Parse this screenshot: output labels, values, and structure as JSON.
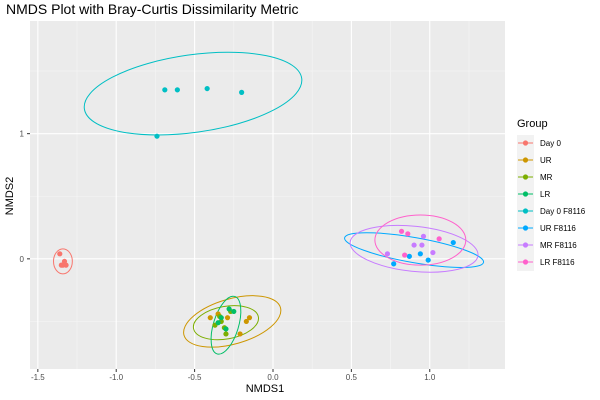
{
  "chart_data": {
    "type": "scatter",
    "title": "NMDS Plot with Bray-Curtis Dissimilarity Metric",
    "xlabel": "NMDS1",
    "ylabel": "NMDS2",
    "xlim": [
      -1.55,
      1.48
    ],
    "ylim": [
      -0.88,
      1.9
    ],
    "x_ticks": [
      -1.5,
      -1.0,
      -0.5,
      0.0,
      0.5,
      1.0
    ],
    "x_tick_labels": [
      "-1.5",
      "-1.0",
      "-0.5",
      "0.0",
      "0.5",
      "1.0"
    ],
    "y_ticks": [
      0,
      1
    ],
    "y_tick_labels": [
      "0",
      "1"
    ],
    "grid": true,
    "legend": {
      "title": "Group",
      "position": "right",
      "entries": [
        "Day 0",
        "UR",
        "MR",
        "LR",
        "Day 0 F8116",
        "UR F8116",
        "MR F8116",
        "LR F8116"
      ]
    },
    "series": [
      {
        "name": "Day 0",
        "color": "#F8766D",
        "x": [
          -1.36,
          -1.35,
          -1.33,
          -1.32,
          -1.34
        ],
        "y": [
          0.04,
          -0.05,
          -0.02,
          -0.05,
          -0.05
        ],
        "ellipse": {
          "cx": -1.34,
          "cy": -0.02,
          "rx": 0.06,
          "ry": 0.1,
          "angle": 0
        }
      },
      {
        "name": "UR",
        "color": "#CD9600",
        "x": [
          -0.29,
          -0.21,
          -0.17,
          -0.15,
          -0.35,
          -0.4
        ],
        "y": [
          -0.47,
          -0.6,
          -0.5,
          -0.47,
          -0.44,
          -0.47
        ],
        "ellipse": {
          "cx": -0.26,
          "cy": -0.5,
          "rx": 0.32,
          "ry": 0.18,
          "angle": -16
        }
      },
      {
        "name": "MR",
        "color": "#7CAE00",
        "x": [
          -0.31,
          -0.33,
          -0.27,
          -0.3,
          -0.34,
          -0.37
        ],
        "y": [
          -0.55,
          -0.5,
          -0.42,
          -0.6,
          -0.46,
          -0.53
        ],
        "ellipse": {
          "cx": -0.3,
          "cy": -0.51,
          "rx": 0.21,
          "ry": 0.13,
          "angle": -10
        }
      },
      {
        "name": "LR",
        "color": "#00BE67",
        "x": [
          -0.28,
          -0.25,
          -0.33,
          -0.35,
          -0.3
        ],
        "y": [
          -0.4,
          -0.42,
          -0.47,
          -0.51,
          -0.56
        ],
        "ellipse": {
          "cx": -0.3,
          "cy": -0.53,
          "rx": 0.08,
          "ry": 0.24,
          "angle": 17
        }
      },
      {
        "name": "Day 0 F8116",
        "color": "#00BFC4",
        "x": [
          -0.74,
          -0.69,
          -0.61,
          -0.42,
          -0.2
        ],
        "y": [
          0.98,
          1.35,
          1.35,
          1.36,
          1.33
        ],
        "ellipse": {
          "cx": -0.51,
          "cy": 1.32,
          "rx": 0.7,
          "ry": 0.31,
          "angle": -8
        }
      },
      {
        "name": "UR F8116",
        "color": "#00A9FF",
        "x": [
          0.77,
          0.87,
          0.94,
          0.99,
          1.15
        ],
        "y": [
          -0.04,
          0.02,
          0.04,
          -0.01,
          0.13
        ],
        "ellipse": {
          "cx": 0.9,
          "cy": 0.07,
          "rx": 0.45,
          "ry": 0.1,
          "angle": 10
        }
      },
      {
        "name": "MR F8116",
        "color": "#C77CFF",
        "x": [
          0.73,
          0.9,
          0.95,
          0.96,
          1.02
        ],
        "y": [
          0.04,
          0.11,
          0.11,
          0.18,
          0.05
        ],
        "ellipse": {
          "cx": 0.9,
          "cy": 0.08,
          "rx": 0.41,
          "ry": 0.18,
          "angle": 6
        }
      },
      {
        "name": "LR F8116",
        "color": "#FF61CC",
        "x": [
          0.82,
          0.86,
          1.06,
          0.84
        ],
        "y": [
          0.22,
          0.2,
          0.16,
          0.03
        ],
        "ellipse": {
          "cx": 0.94,
          "cy": 0.15,
          "rx": 0.29,
          "ry": 0.2,
          "angle": 0
        }
      }
    ]
  }
}
